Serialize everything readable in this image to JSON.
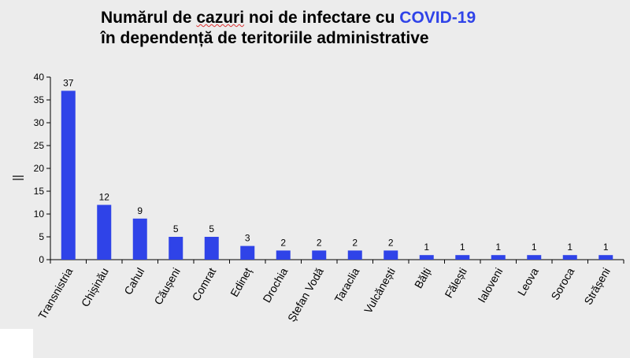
{
  "header": {
    "title_part1": "Numărul de ",
    "title_cazuri": "cazuri",
    "title_part2": " noi de infectare cu ",
    "title_covid": "COVID-19",
    "title_line2": "în dependență de teritoriile administrative"
  },
  "colors": {
    "bar": "#2f43e8",
    "title_accent": "#2f43e8",
    "axis": "#000000"
  },
  "chart_data": {
    "type": "bar",
    "categories": [
      "Transnistria",
      "Chișinău",
      "Cahul",
      "Căușeni",
      "Comrat",
      "Edineț",
      "Drochia",
      "Ștefan Vodă",
      "Taraclia",
      "Vulcănești",
      "Bălți",
      "Fălești",
      "Ialoveni",
      "Leova",
      "Soroca",
      "Strășeni"
    ],
    "values": [
      37,
      12,
      9,
      5,
      5,
      3,
      2,
      2,
      2,
      2,
      1,
      1,
      1,
      1,
      1,
      1
    ],
    "ylabel": "||",
    "ylim": [
      0,
      40
    ],
    "yticks": [
      0,
      5,
      10,
      15,
      20,
      25,
      30,
      35,
      40
    ],
    "grid": false,
    "legend": "none",
    "data_labels": true
  }
}
